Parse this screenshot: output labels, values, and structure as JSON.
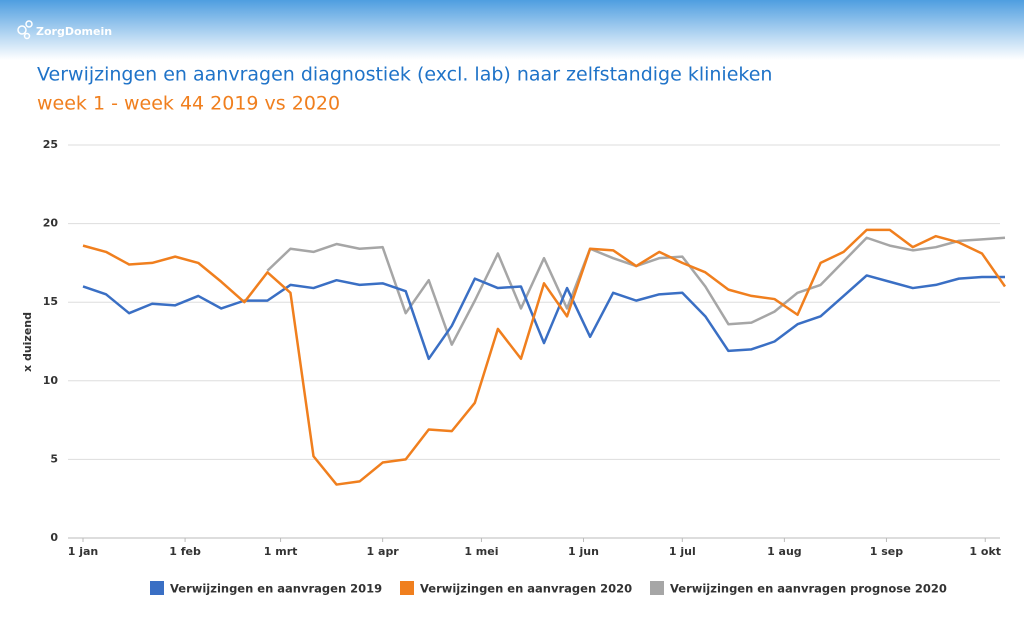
{
  "brand": "ZorgDomein",
  "chart_data": {
    "type": "line",
    "title": "Verwijzingen en aanvragen diagnostiek (excl. lab) naar zelfstandige klinieken",
    "subtitle": "week 1 - week 44 2019 vs 2020",
    "y_label": "x duizend",
    "x": [
      0,
      7,
      14,
      21,
      28,
      35,
      42,
      49,
      56,
      63,
      70,
      77,
      84,
      91,
      98,
      105,
      112,
      119,
      126,
      133,
      140,
      147,
      154,
      161,
      168,
      175,
      182,
      189,
      196,
      203,
      210,
      217,
      224,
      231,
      238,
      245,
      252,
      259,
      266,
      273,
      280
    ],
    "xlim": [
      0,
      280
    ],
    "xticks": [
      {
        "value": 0,
        "label": "1 jan"
      },
      {
        "value": 31,
        "label": "1 feb"
      },
      {
        "value": 60,
        "label": "1 mrt"
      },
      {
        "value": 91,
        "label": "1 apr"
      },
      {
        "value": 121,
        "label": "1 mei"
      },
      {
        "value": 152,
        "label": "1 jun"
      },
      {
        "value": 182,
        "label": "1 jul"
      },
      {
        "value": 213,
        "label": "1 aug"
      },
      {
        "value": 244,
        "label": "1 sep"
      },
      {
        "value": 274,
        "label": "1 okt"
      }
    ],
    "ylim": [
      0,
      25
    ],
    "yticks": [
      0,
      5,
      10,
      15,
      20,
      25
    ],
    "grid": true,
    "series": [
      {
        "name": "Verwijzingen en aanvragen 2019",
        "color": "#3a6fc4",
        "values": [
          16.0,
          15.5,
          14.3,
          14.9,
          14.8,
          15.4,
          14.6,
          15.1,
          15.1,
          16.1,
          15.9,
          16.4,
          16.1,
          16.2,
          15.7,
          11.4,
          13.5,
          16.5,
          15.9,
          16.0,
          12.4,
          15.9,
          12.8,
          15.6,
          15.1,
          15.5,
          15.6,
          14.1,
          11.9,
          12.0,
          12.5,
          13.6,
          14.1,
          15.4,
          16.7,
          16.3,
          15.9,
          16.1,
          16.5,
          16.6,
          16.6
        ]
      },
      {
        "name": "Verwijzingen en aanvragen 2020",
        "color": "#f07f1e",
        "values": [
          18.6,
          18.2,
          17.4,
          17.5,
          17.9,
          17.5,
          16.3,
          15.0,
          16.9,
          15.6,
          5.2,
          3.4,
          3.6,
          4.8,
          5.0,
          6.9,
          6.8,
          8.6,
          13.3,
          11.4,
          16.2,
          14.1,
          18.4,
          18.3,
          17.3,
          18.2,
          17.5,
          16.9,
          15.8,
          15.4,
          15.2,
          14.2,
          17.5,
          18.2,
          19.6,
          19.6,
          18.5,
          19.2,
          18.8,
          18.1,
          16.0
        ]
      },
      {
        "name": "Verwijzingen en aanvragen prognose 2020",
        "color": "#a6a6a6",
        "values": [
          null,
          null,
          null,
          null,
          null,
          null,
          null,
          null,
          17.0,
          18.4,
          18.2,
          18.7,
          18.4,
          18.5,
          14.3,
          16.4,
          12.3,
          15.1,
          18.1,
          14.6,
          17.8,
          14.6,
          18.4,
          17.8,
          17.3,
          17.8,
          17.9,
          16.0,
          13.6,
          13.7,
          14.4,
          15.6,
          16.1,
          17.6,
          19.1,
          18.6,
          18.3,
          18.5,
          18.9,
          19.0,
          19.1
        ]
      }
    ]
  }
}
